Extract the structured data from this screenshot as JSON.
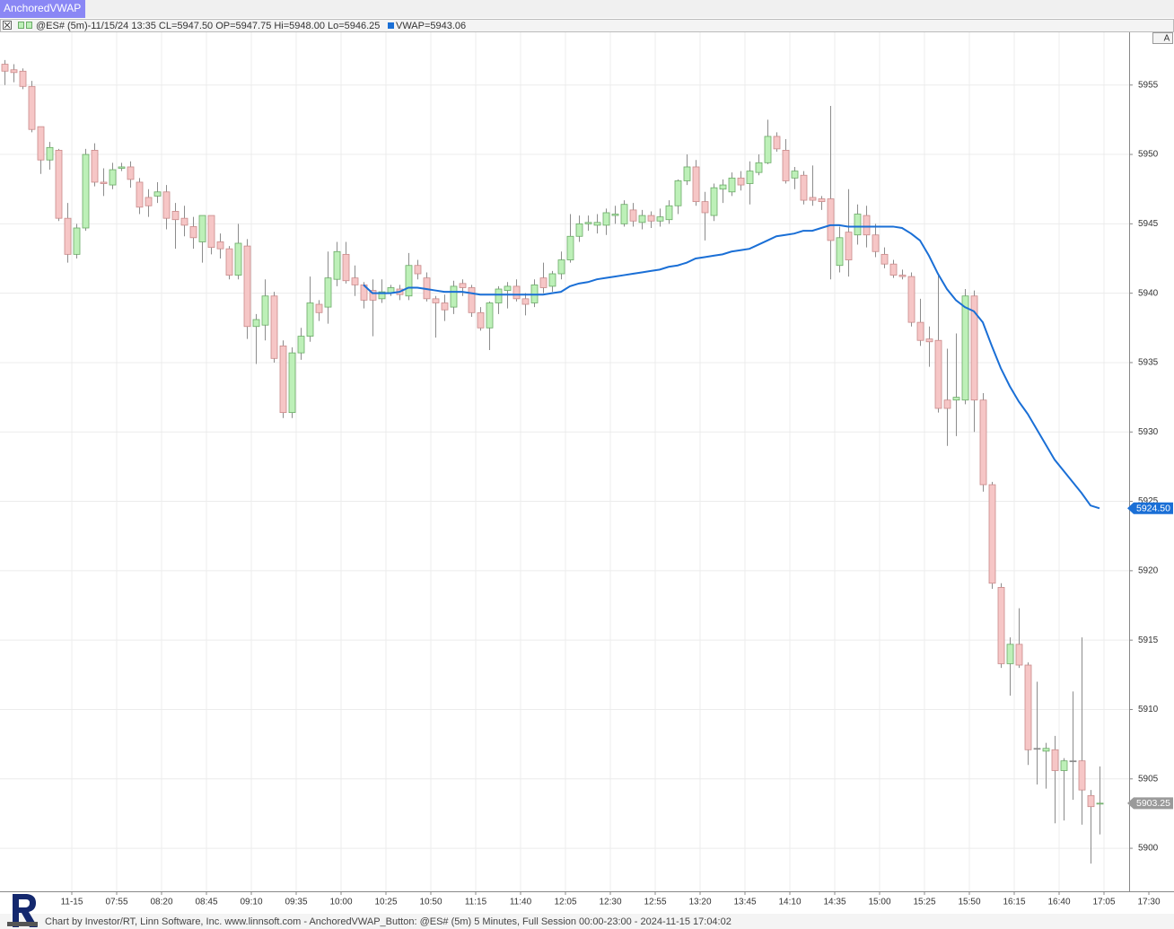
{
  "tab": "AnchoredVWAP",
  "button": "A",
  "header": {
    "symbol_info": "@ES# (5m)-11/15/24 13:35 CL=5947.50 OP=5947.75 Hi=5948.00 Lo=5946.25"
  },
  "footer": "Chart by Investor/RT, Linn Software, Inc. www.linnsoft.com - AnchoredVWAP_Button: @ES# (5m) 5 Minutes, Full Session 00:00-23:00 - 2024-11-15 17:04:02",
  "chart_data": {
    "type": "candlestick",
    "ylim": [
      5896.9,
      5958.8
    ],
    "yticks": [
      5900,
      5905,
      5910,
      5915,
      5920,
      5925,
      5930,
      5935,
      5940,
      5945,
      5950,
      5955
    ],
    "xlim": [
      -0.5,
      125.3
    ],
    "xticks": [
      {
        "value": 7.5,
        "label": "11-15"
      },
      {
        "value": 12.5,
        "label": "07:55"
      },
      {
        "value": 17.5,
        "label": "08:20"
      },
      {
        "value": 22.5,
        "label": "08:45"
      },
      {
        "value": 27.5,
        "label": "09:10"
      },
      {
        "value": 32.5,
        "label": "09:35"
      },
      {
        "value": 37.5,
        "label": "10:00"
      },
      {
        "value": 42.5,
        "label": "10:25"
      },
      {
        "value": 47.5,
        "label": "10:50"
      },
      {
        "value": 52.5,
        "label": "11:15"
      },
      {
        "value": 57.5,
        "label": "11:40"
      },
      {
        "value": 62.5,
        "label": "12:05"
      },
      {
        "value": 67.5,
        "label": "12:30"
      },
      {
        "value": 72.5,
        "label": "12:55"
      },
      {
        "value": 77.5,
        "label": "13:20"
      },
      {
        "value": 82.5,
        "label": "13:45"
      },
      {
        "value": 87.5,
        "label": "14:10"
      },
      {
        "value": 92.5,
        "label": "14:35"
      },
      {
        "value": 97.5,
        "label": "15:00"
      },
      {
        "value": 102.5,
        "label": "15:25"
      },
      {
        "value": 107.5,
        "label": "15:50"
      },
      {
        "value": 112.5,
        "label": "16:15"
      },
      {
        "value": 117.5,
        "label": "16:40"
      },
      {
        "value": 122.5,
        "label": "17:05"
      },
      {
        "value": 127.5,
        "label": "17:30"
      }
    ],
    "grid": true,
    "candles": {
      "up_color": "#bdf0b8",
      "up_edge": "#6aaa66",
      "down_color": "#f6c6c6",
      "down_edge": "#c98a8a",
      "wick_color": "#8c8c8c",
      "open": [
        5956.5,
        5956.1,
        5956.0,
        5954.9,
        5952.0,
        5949.6,
        5950.3,
        5945.4,
        5942.8,
        5944.7,
        5950.3,
        5948.0,
        5947.8,
        5949.0,
        5949.1,
        5948.0,
        5946.9,
        5947.0,
        5947.3,
        5945.9,
        5945.4,
        5944.8,
        5943.7,
        5945.6,
        5943.7,
        5943.2,
        5941.3,
        5943.4,
        5937.6,
        5937.7,
        5939.8,
        5936.2,
        5931.4,
        5935.7,
        5936.9,
        5939.2,
        5939.0,
        5941.0,
        5942.8,
        5941.1,
        5940.6,
        5940.2,
        5939.6,
        5940.0,
        5940.3,
        5939.8,
        5942.0,
        5941.1,
        5939.6,
        5939.3,
        5939.0,
        5940.7,
        5940.4,
        5938.6,
        5937.5,
        5939.3,
        5940.2,
        5940.5,
        5939.6,
        5939.3,
        5941.1,
        5940.5,
        5941.4,
        5942.4,
        5944.1,
        5945.0,
        5944.9,
        5944.9,
        5945.6,
        5945.0,
        5946.0,
        5945.1,
        5945.6,
        5945.2,
        5945.3,
        5946.3,
        5948.1,
        5949.1,
        5946.6,
        5945.6,
        5947.5,
        5947.3,
        5948.3,
        5947.9,
        5948.7,
        5949.4,
        5951.3,
        5950.3,
        5948.3,
        5948.5,
        5946.9,
        5946.8,
        5946.8,
        5942.0,
        5944.4,
        5944.2,
        5945.6,
        5944.2,
        5942.8,
        5942.1,
        5941.3,
        5941.2,
        5937.9,
        5936.7,
        5936.6,
        5932.3,
        5932.3,
        5932.3,
        5939.8,
        5932.3,
        5926.2,
        5918.8,
        5913.3,
        5914.7,
        5913.2,
        5907.2,
        5907.0,
        5907.1,
        5905.6,
        5906.3,
        5906.3,
        5903.8,
        5903.2
      ],
      "high": [
        5956.8,
        5956.5,
        5956.2,
        5955.3,
        5952.0,
        5950.9,
        5950.4,
        5946.5,
        5945.0,
        5950.4,
        5950.8,
        5949.0,
        5949.4,
        5949.4,
        5949.5,
        5948.3,
        5947.5,
        5948.0,
        5947.8,
        5946.5,
        5946.3,
        5945.5,
        5945.6,
        5945.6,
        5944.3,
        5943.4,
        5945.0,
        5943.9,
        5938.5,
        5941.0,
        5940.1,
        5936.6,
        5936.1,
        5937.5,
        5941.2,
        5939.5,
        5943.0,
        5943.7,
        5943.7,
        5942.0,
        5940.8,
        5941.0,
        5941.0,
        5940.6,
        5940.6,
        5942.9,
        5942.4,
        5941.5,
        5939.8,
        5939.9,
        5940.9,
        5941.0,
        5940.6,
        5939.0,
        5939.4,
        5940.5,
        5940.8,
        5941.0,
        5940.0,
        5941.0,
        5942.2,
        5941.6,
        5943.0,
        5945.7,
        5945.6,
        5945.6,
        5945.7,
        5946.1,
        5946.3,
        5946.7,
        5946.5,
        5946.0,
        5945.9,
        5946.1,
        5946.7,
        5948.2,
        5950.0,
        5949.6,
        5947.3,
        5947.9,
        5948.2,
        5948.7,
        5948.8,
        5949.5,
        5950.0,
        5952.5,
        5951.6,
        5951.1,
        5949.1,
        5948.8,
        5949.2,
        5947.0,
        5953.5,
        5944.8,
        5947.5,
        5946.4,
        5946.3,
        5945.0,
        5943.3,
        5942.4,
        5941.7,
        5941.5,
        5939.6,
        5937.6,
        5941.4,
        5936.0,
        5937.1,
        5940.3,
        5940.2,
        5932.8,
        5926.4,
        5919.1,
        5915.2,
        5917.3,
        5913.4,
        5912.0,
        5907.6,
        5908.1,
        5906.5,
        5911.3,
        5915.2,
        5904.2,
        5905.9
      ],
      "low": [
        5955.0,
        5955.2,
        5954.7,
        5951.6,
        5948.6,
        5948.9,
        5945.2,
        5942.2,
        5942.5,
        5944.5,
        5947.7,
        5947.0,
        5947.5,
        5948.8,
        5947.6,
        5945.7,
        5945.5,
        5946.5,
        5944.6,
        5943.2,
        5944.1,
        5943.2,
        5942.2,
        5942.8,
        5942.5,
        5941.0,
        5941.0,
        5936.7,
        5934.9,
        5936.6,
        5935.0,
        5931.0,
        5931.0,
        5935.2,
        5936.5,
        5938.0,
        5937.8,
        5940.5,
        5940.7,
        5939.8,
        5938.9,
        5936.9,
        5939.3,
        5939.8,
        5939.5,
        5939.5,
        5941.0,
        5939.4,
        5936.8,
        5938.0,
        5938.5,
        5939.8,
        5938.3,
        5937.3,
        5935.9,
        5938.5,
        5938.9,
        5939.4,
        5938.4,
        5939.0,
        5940.0,
        5940.1,
        5941.0,
        5942.2,
        5943.7,
        5944.5,
        5944.3,
        5944.2,
        5945.0,
        5944.8,
        5944.8,
        5944.6,
        5944.7,
        5944.8,
        5945.0,
        5945.7,
        5947.8,
        5946.3,
        5943.8,
        5945.2,
        5946.5,
        5947.0,
        5947.4,
        5946.4,
        5948.5,
        5949.3,
        5950.2,
        5947.9,
        5947.5,
        5946.4,
        5946.3,
        5946.0,
        5941.0,
        5941.5,
        5941.2,
        5943.5,
        5943.3,
        5942.6,
        5941.8,
        5941.1,
        5941.0,
        5937.6,
        5936.2,
        5934.7,
        5931.4,
        5929.0,
        5929.7,
        5932.0,
        5930.0,
        5925.7,
        5918.7,
        5913.0,
        5911.0,
        5913.0,
        5906.0,
        5904.6,
        5904.3,
        5901.8,
        5902.0,
        5903.5,
        5901.7,
        5898.9,
        5901.0
      ],
      "close": [
        5956.0,
        5955.9,
        5954.9,
        5951.8,
        5949.6,
        5950.5,
        5945.4,
        5942.8,
        5944.7,
        5950.0,
        5948.0,
        5947.9,
        5948.9,
        5949.1,
        5948.2,
        5946.2,
        5946.3,
        5947.3,
        5945.4,
        5945.3,
        5944.9,
        5944.0,
        5945.6,
        5943.3,
        5943.2,
        5941.3,
        5943.6,
        5937.6,
        5938.1,
        5939.8,
        5935.3,
        5931.4,
        5935.7,
        5936.9,
        5939.3,
        5938.6,
        5941.1,
        5943.0,
        5940.9,
        5940.6,
        5939.5,
        5939.5,
        5940.1,
        5940.4,
        5939.9,
        5942.0,
        5941.4,
        5939.6,
        5939.3,
        5938.8,
        5940.5,
        5940.4,
        5938.6,
        5937.5,
        5939.3,
        5940.3,
        5940.5,
        5939.6,
        5939.2,
        5940.6,
        5940.4,
        5941.4,
        5942.4,
        5944.1,
        5945.0,
        5945.1,
        5945.1,
        5945.8,
        5945.7,
        5946.4,
        5945.2,
        5945.6,
        5945.2,
        5945.5,
        5946.3,
        5948.1,
        5949.1,
        5946.6,
        5945.8,
        5947.6,
        5947.8,
        5948.3,
        5947.8,
        5948.8,
        5949.4,
        5951.3,
        5950.4,
        5948.1,
        5948.8,
        5946.7,
        5946.7,
        5946.6,
        5943.8,
        5944.0,
        5942.4,
        5945.7,
        5944.2,
        5943.0,
        5942.1,
        5941.3,
        5941.2,
        5937.9,
        5936.6,
        5936.5,
        5931.7,
        5931.7,
        5932.5,
        5939.8,
        5932.3,
        5926.2,
        5919.1,
        5913.3,
        5914.7,
        5913.2,
        5907.1,
        5907.2,
        5907.2,
        5905.6,
        5906.3,
        5906.3,
        5904.2,
        5903.0,
        5903.25
      ]
    },
    "series": [
      {
        "label": "VWAP=5943.06",
        "color": "#1a6fd6",
        "values": [
          null,
          null,
          null,
          null,
          null,
          null,
          null,
          null,
          null,
          null,
          null,
          null,
          null,
          null,
          null,
          null,
          null,
          null,
          null,
          null,
          null,
          null,
          null,
          null,
          null,
          null,
          null,
          null,
          null,
          null,
          null,
          null,
          null,
          null,
          null,
          null,
          null,
          null,
          null,
          null,
          5940.6,
          5940.0,
          5940.0,
          5940.0,
          5940.1,
          5940.4,
          5940.4,
          5940.3,
          5940.2,
          5940.1,
          5940.1,
          5940.1,
          5940.0,
          5939.9,
          5939.9,
          5939.9,
          5939.9,
          5939.9,
          5939.9,
          5939.9,
          5939.9,
          5940.0,
          5940.1,
          5940.5,
          5940.7,
          5940.8,
          5941.0,
          5941.1,
          5941.2,
          5941.3,
          5941.4,
          5941.5,
          5941.6,
          5941.7,
          5941.9,
          5942.0,
          5942.2,
          5942.5,
          5942.6,
          5942.7,
          5942.8,
          5943.0,
          5943.1,
          5943.2,
          5943.5,
          5943.8,
          5944.1,
          5944.2,
          5944.3,
          5944.5,
          5944.5,
          5944.7,
          5944.9,
          5944.9,
          5944.8,
          5944.8,
          5944.8,
          5944.8,
          5944.8,
          5944.8,
          5944.7,
          5944.3,
          5943.8,
          5942.7,
          5941.4,
          5940.3,
          5939.5,
          5939.0,
          5938.7,
          5937.9,
          5936.2,
          5934.6,
          5933.3,
          5932.2,
          5931.3,
          5930.2,
          5929.1,
          5928.0,
          5927.2,
          5926.4,
          5925.6,
          5924.7,
          5924.5
        ]
      }
    ],
    "price_tags": [
      {
        "value": 5924.5,
        "label": "5924.50",
        "color": "#1a6fd6"
      },
      {
        "value": 5903.25,
        "label": "5903.25",
        "color": "#9a9a9a"
      }
    ]
  }
}
